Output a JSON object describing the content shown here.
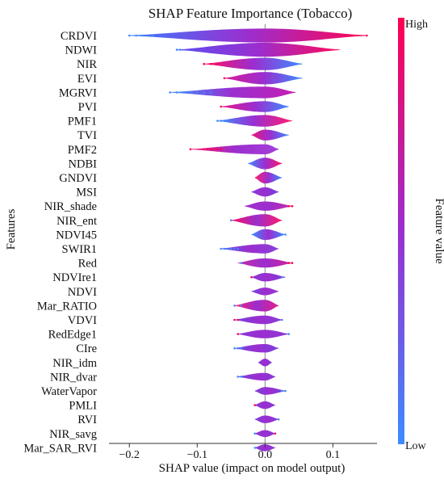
{
  "chart_data": {
    "type": "violin",
    "title": "SHAP Feature Importance (Tobacco)",
    "xlabel": "SHAP value (impact on model output)",
    "ylabel": "Features",
    "xlim": [
      -0.23,
      0.165
    ],
    "xticks": [
      -0.2,
      -0.1,
      0.0,
      0.1
    ],
    "xtick_labels": [
      "−0.2",
      "−0.1",
      "0.0",
      "0.1"
    ],
    "colorbar": {
      "label": "Feature value",
      "high": "High",
      "low": "Low"
    },
    "colors": {
      "low": "#3d8bff",
      "high": "#ff0052",
      "mid": "#9b2ecf"
    },
    "features": [
      {
        "name": "CRDVI",
        "lo": -0.2,
        "hi": 0.15,
        "w": 0.85,
        "lc": "#3a7cff",
        "rc": "#ff0552",
        "dots": [
          [
            -0.2,
            "l"
          ],
          [
            -0.19,
            "l"
          ],
          [
            -0.18,
            "l"
          ],
          [
            -0.165,
            "l"
          ],
          [
            0.15,
            "h"
          ]
        ]
      },
      {
        "name": "NDWI",
        "lo": -0.13,
        "hi": 0.11,
        "w": 0.85,
        "lc": "#5a4ef0",
        "rc": "#ff0a5a",
        "dots": [
          [
            -0.13,
            "l"
          ],
          [
            -0.125,
            "l"
          ]
        ]
      },
      {
        "name": "NIR",
        "lo": -0.09,
        "hi": 0.055,
        "w": 0.75,
        "lc": "#ff1060",
        "rc": "#3d8bff",
        "dots": [
          [
            -0.09,
            "h"
          ],
          [
            -0.08,
            "h"
          ],
          [
            -0.07,
            "h"
          ]
        ]
      },
      {
        "name": "EVI",
        "lo": -0.06,
        "hi": 0.055,
        "w": 0.75,
        "lc": "#d81b9a",
        "rc": "#3d8bff",
        "dots": [
          [
            -0.06,
            "h"
          ]
        ]
      },
      {
        "name": "MGRVI",
        "lo": -0.14,
        "hi": 0.045,
        "w": 0.7,
        "lc": "#3d8bff",
        "rc": "#c320b4",
        "dots": [
          [
            -0.14,
            "l"
          ],
          [
            -0.13,
            "l"
          ],
          [
            -0.12,
            "l"
          ],
          [
            -0.11,
            "l"
          ],
          [
            -0.1,
            "l"
          ],
          [
            -0.09,
            "l"
          ],
          [
            -0.08,
            "l"
          ]
        ]
      },
      {
        "name": "PVI",
        "lo": -0.065,
        "hi": 0.035,
        "w": 0.65,
        "lc": "#e5158a",
        "rc": "#3d8bff",
        "dots": [
          [
            -0.065,
            "h"
          ]
        ]
      },
      {
        "name": "PMF1",
        "lo": -0.07,
        "hi": 0.04,
        "w": 0.7,
        "lc": "#3d8bff",
        "rc": "#ff2070",
        "dots": [
          [
            -0.07,
            "l"
          ],
          [
            -0.065,
            "l"
          ],
          [
            -0.06,
            "l"
          ],
          [
            -0.055,
            "l"
          ]
        ]
      },
      {
        "name": "TVI",
        "lo": -0.02,
        "hi": 0.035,
        "w": 0.65,
        "lc": "#e8157e",
        "rc": "#3d8bff",
        "dots": []
      },
      {
        "name": "PMF2",
        "lo": -0.11,
        "hi": 0.02,
        "w": 0.6,
        "lc": "#ff1a6a",
        "rc": "#a340d8",
        "dots": [
          [
            -0.11,
            "h"
          ],
          [
            -0.085,
            "h"
          ],
          [
            -0.08,
            "h"
          ],
          [
            -0.075,
            "h"
          ],
          [
            -0.07,
            "h"
          ],
          [
            -0.065,
            "h"
          ]
        ]
      },
      {
        "name": "NDBI",
        "lo": -0.025,
        "hi": 0.025,
        "w": 0.7,
        "lc": "#3d8bff",
        "rc": "#ff1a6a",
        "dots": []
      },
      {
        "name": "GNDVI",
        "lo": -0.015,
        "hi": 0.025,
        "w": 0.7,
        "lc": "#ff2070",
        "rc": "#3d8bff",
        "dots": []
      },
      {
        "name": "MSI",
        "lo": -0.02,
        "hi": 0.02,
        "w": 0.55,
        "lc": "#8a36da",
        "rc": "#6e44e0",
        "dots": []
      },
      {
        "name": "NIR_shade",
        "lo": -0.03,
        "hi": 0.04,
        "w": 0.55,
        "lc": "#a030cc",
        "rc": "#c52aa8",
        "dots": [
          [
            0.035,
            "h"
          ],
          [
            0.04,
            "h"
          ]
        ]
      },
      {
        "name": "NIR_ent",
        "lo": -0.05,
        "hi": 0.025,
        "w": 0.75,
        "lc": "#ff0a5a",
        "rc": "#ff1a6a",
        "dots": [
          [
            -0.05,
            "l"
          ]
        ]
      },
      {
        "name": "NDVI45",
        "lo": -0.02,
        "hi": 0.03,
        "w": 0.65,
        "lc": "#3d8bff",
        "rc": "#3d8bff",
        "dots": [
          [
            0.025,
            "l"
          ],
          [
            0.03,
            "l"
          ]
        ]
      },
      {
        "name": "SWIR1",
        "lo": -0.065,
        "hi": 0.02,
        "w": 0.55,
        "lc": "#6a4ce6",
        "rc": "#8a40da",
        "dots": [
          [
            -0.065,
            "l"
          ],
          [
            -0.06,
            "l"
          ],
          [
            -0.055,
            "l"
          ],
          [
            -0.05,
            "l"
          ],
          [
            -0.045,
            "l"
          ],
          [
            -0.04,
            "l"
          ]
        ]
      },
      {
        "name": "Red",
        "lo": -0.04,
        "hi": 0.04,
        "w": 0.55,
        "lc": "#c32aa8",
        "rc": "#d11f9a",
        "dots": [
          [
            0.035,
            "h"
          ],
          [
            0.04,
            "h"
          ],
          [
            -0.035,
            "l"
          ]
        ]
      },
      {
        "name": "NDVIre1",
        "lo": -0.02,
        "hi": 0.03,
        "w": 0.5,
        "lc": "#8a38d8",
        "rc": "#7a40e0",
        "dots": [
          [
            0.025,
            "l"
          ],
          [
            -0.02,
            "h"
          ]
        ]
      },
      {
        "name": "NDVI",
        "lo": -0.02,
        "hi": 0.02,
        "w": 0.45,
        "lc": "#7a40e0",
        "rc": "#9a36d0",
        "dots": []
      },
      {
        "name": "Mar_RATIO",
        "lo": -0.045,
        "hi": 0.02,
        "w": 0.7,
        "lc": "#ff1a70",
        "rc": "#e0208a",
        "dots": [
          [
            -0.045,
            "l"
          ],
          [
            -0.035,
            "l"
          ]
        ]
      },
      {
        "name": "VDVI",
        "lo": -0.045,
        "hi": 0.025,
        "w": 0.5,
        "lc": "#6e44e0",
        "rc": "#8a3ad8",
        "dots": [
          [
            -0.045,
            "h"
          ],
          [
            -0.04,
            "h"
          ],
          [
            0.025,
            "l"
          ]
        ]
      },
      {
        "name": "RedEdge1",
        "lo": -0.04,
        "hi": 0.035,
        "w": 0.5,
        "lc": "#8a38d8",
        "rc": "#8a38d8",
        "dots": [
          [
            -0.04,
            "h"
          ],
          [
            0.035,
            "l"
          ]
        ]
      },
      {
        "name": "CIre",
        "lo": -0.045,
        "hi": 0.02,
        "w": 0.5,
        "lc": "#6a48e0",
        "rc": "#7a40dc",
        "dots": [
          [
            -0.045,
            "l"
          ],
          [
            -0.04,
            "l"
          ],
          [
            -0.035,
            "l"
          ]
        ]
      },
      {
        "name": "NIR_idm",
        "lo": -0.01,
        "hi": 0.01,
        "w": 0.45,
        "lc": "#8a38d8",
        "rc": "#8a38d8",
        "dots": []
      },
      {
        "name": "NIR_dvar",
        "lo": -0.04,
        "hi": 0.015,
        "w": 0.45,
        "lc": "#6e44e0",
        "rc": "#8a38d8",
        "dots": [
          [
            -0.04,
            "l"
          ],
          [
            -0.035,
            "l"
          ]
        ]
      },
      {
        "name": "WaterVapor",
        "lo": -0.015,
        "hi": 0.03,
        "w": 0.45,
        "lc": "#7a40dc",
        "rc": "#6e44e0",
        "dots": [
          [
            0.025,
            "l"
          ],
          [
            0.03,
            "l"
          ]
        ]
      },
      {
        "name": "PMLI",
        "lo": -0.015,
        "hi": 0.015,
        "w": 0.45,
        "lc": "#8a38d8",
        "rc": "#8a38d8",
        "dots": [
          [
            -0.015,
            "h"
          ]
        ]
      },
      {
        "name": "RVI",
        "lo": -0.015,
        "hi": 0.02,
        "w": 0.45,
        "lc": "#7a40e0",
        "rc": "#8a38d8",
        "dots": [
          [
            0.02,
            "l"
          ]
        ]
      },
      {
        "name": "NIR_savg",
        "lo": -0.015,
        "hi": 0.015,
        "w": 0.4,
        "lc": "#8a38d8",
        "rc": "#8a38d8",
        "dots": [
          [
            -0.015,
            "l"
          ],
          [
            0.015,
            "h"
          ]
        ]
      },
      {
        "name": "Mar_SAR_RVI",
        "lo": -0.015,
        "hi": 0.015,
        "w": 0.4,
        "lc": "#7a40dc",
        "rc": "#8a38d8",
        "dots": [
          [
            -0.015,
            "l"
          ]
        ]
      }
    ]
  }
}
